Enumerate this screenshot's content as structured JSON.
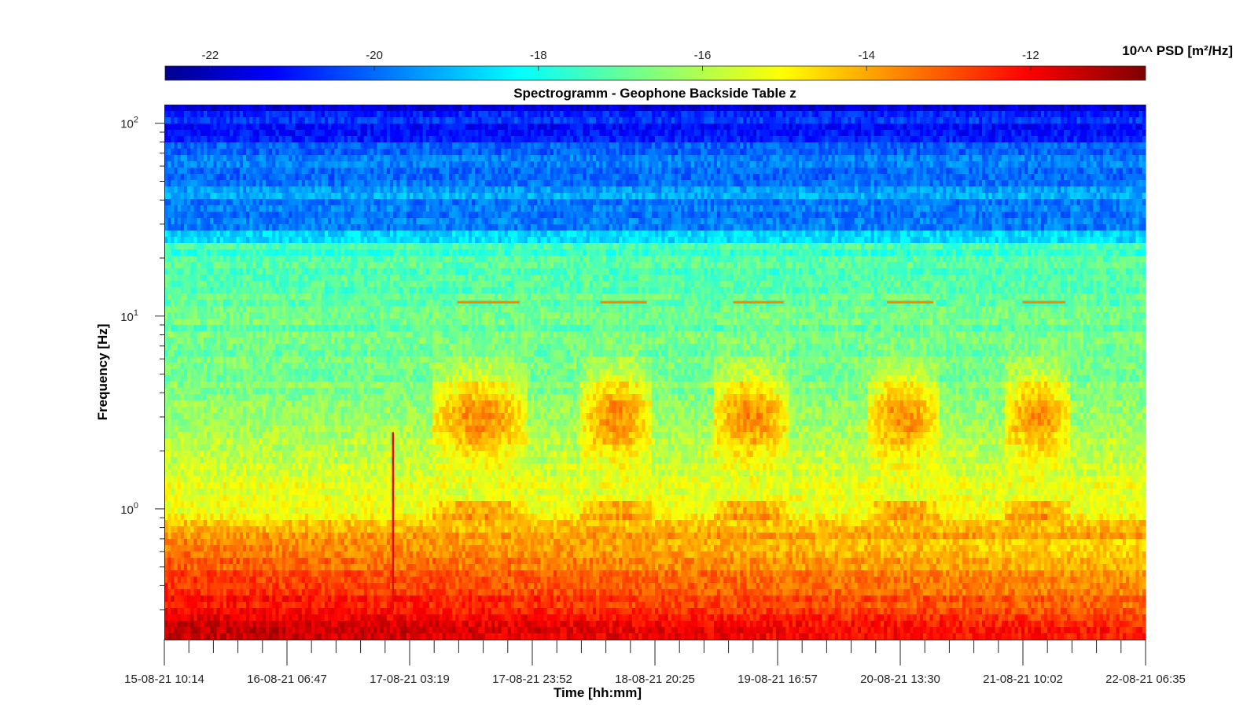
{
  "chart_data": {
    "type": "heatmap",
    "title": "Spectrogramm - Geophone Backside Table z",
    "xlabel": "Time [hh:mm]",
    "ylabel": "Frequency [Hz]",
    "x_tick_labels": [
      "15-08-21 10:14",
      "16-08-21 06:47",
      "17-08-21 03:19",
      "17-08-21 23:52",
      "18-08-21 20:25",
      "19-08-21 16:57",
      "20-08-21 13:30",
      "21-08-21 10:02",
      "22-08-21 06:35"
    ],
    "y_scale": "log",
    "y_range": [
      0.21,
      125
    ],
    "y_tick_labels": [
      {
        "value": 1,
        "base": "10",
        "exp": "0"
      },
      {
        "value": 10,
        "base": "10",
        "exp": "1"
      },
      {
        "value": 100,
        "base": "10",
        "exp": "2"
      }
    ],
    "colorbar": {
      "label": "10^^ PSD [m²/Hz]",
      "range": [
        -22.55,
        -10.6
      ],
      "tick_labels": [
        "-22",
        "-20",
        "-18",
        "-16",
        "-14",
        "-12"
      ],
      "tick_values": [
        -22,
        -20,
        -18,
        -16,
        -14,
        -12
      ],
      "colormap": "jet"
    },
    "activity_periods": [
      {
        "start": "17-08-21 07:00",
        "end": "17-08-21 23:00"
      },
      {
        "start": "18-08-21 08:00",
        "end": "18-08-21 20:00"
      },
      {
        "start": "19-08-21 06:00",
        "end": "19-08-21 19:00"
      },
      {
        "start": "20-08-21 08:00",
        "end": "20-08-21 20:00"
      },
      {
        "start": "21-08-21 07:00",
        "end": "21-08-21 18:00"
      }
    ],
    "narrowband_line_hz": 11.8,
    "transient_event": {
      "time": "17-08-21 00:30",
      "freq_range_hz": [
        0.3,
        2.5
      ]
    }
  }
}
